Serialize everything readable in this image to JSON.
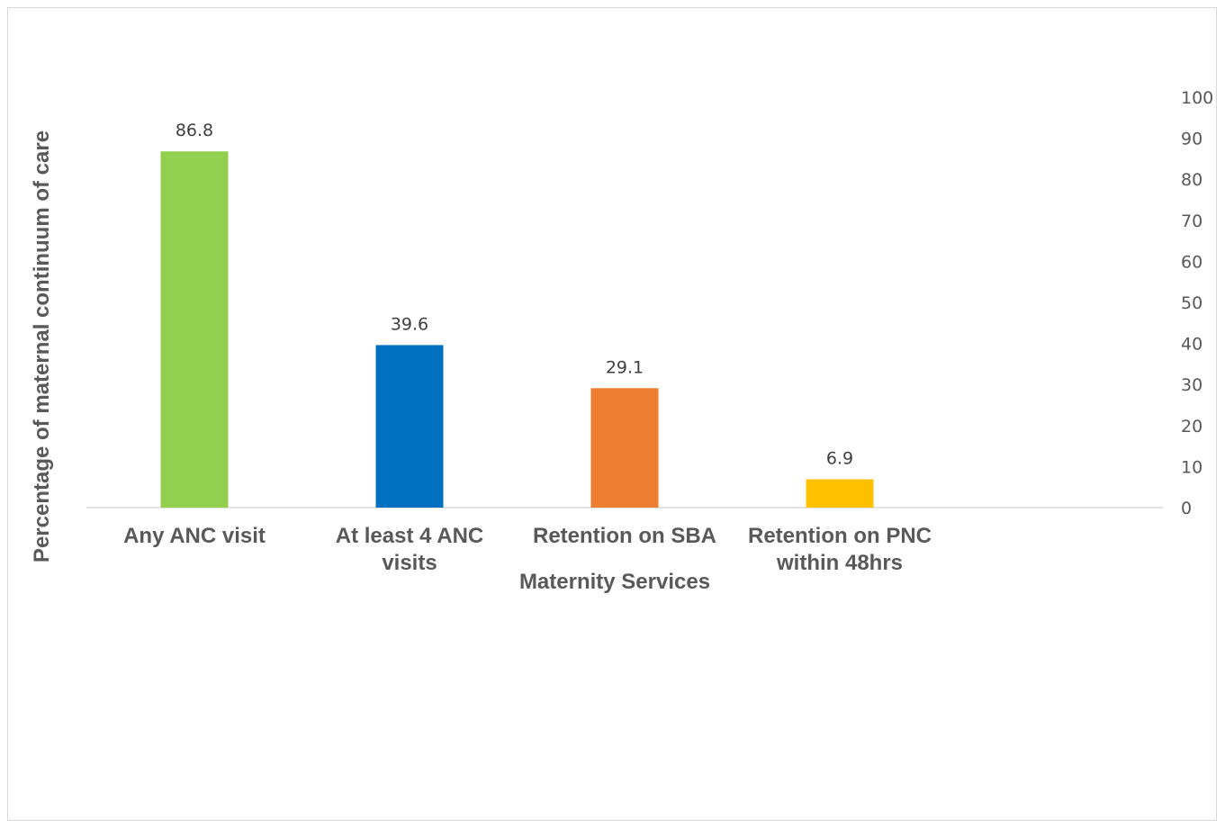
{
  "chart_data": {
    "type": "bar",
    "categories": [
      [
        "Any ANC visit"
      ],
      [
        "At least 4 ANC",
        "visits"
      ],
      [
        "Retention on SBA"
      ],
      [
        "Retention on PNC",
        "within 48hrs"
      ]
    ],
    "values": [
      86.8,
      39.6,
      29.1,
      6.9
    ],
    "data_labels": [
      "86.8",
      "39.6",
      "29.1",
      "6.9"
    ],
    "colors": [
      "#92d050",
      "#0070c0",
      "#ed7d31",
      "#ffc000"
    ],
    "xlabel": "Maternity Services",
    "ylabel": "Percentage of maternal  continuum of care",
    "ylim": [
      0,
      100
    ],
    "yticks": [
      "0",
      "10",
      "20",
      "30",
      "40",
      "50",
      "60",
      "70",
      "80",
      "90",
      "100"
    ],
    "y_axis_side": "right",
    "grid": false,
    "legend": "none"
  }
}
